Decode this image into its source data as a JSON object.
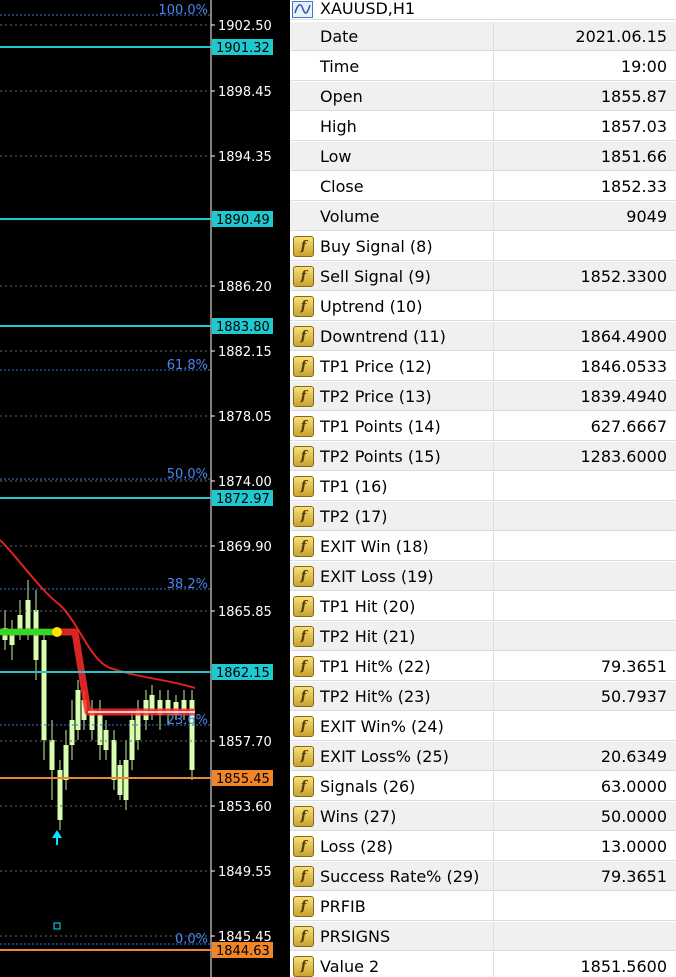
{
  "price_axis": {
    "labels": [
      "1902.50",
      "1898.45",
      "1894.35",
      "1886.20",
      "1882.15",
      "1878.05",
      "1874.00",
      "1869.90",
      "1865.85",
      "1857.70",
      "1853.60",
      "1849.55",
      "1845.45"
    ],
    "levels": [
      "1901.32",
      "1890.49",
      "1883.80",
      "1872.97",
      "1862.15"
    ],
    "orange_levels": [
      "1855.45",
      "1844.63"
    ]
  },
  "fib_labels": [
    "100.0%",
    "61.8%",
    "50.0%",
    "38.2%",
    "23.6%",
    "0.0%"
  ],
  "data_window": {
    "title": "XAUUSD,H1",
    "rows": [
      {
        "label": "Date",
        "value": "2021.06.15"
      },
      {
        "label": "Time",
        "value": "19:00"
      },
      {
        "label": "Open",
        "value": "1855.87"
      },
      {
        "label": "High",
        "value": "1857.03"
      },
      {
        "label": "Low",
        "value": "1851.66"
      },
      {
        "label": "Close",
        "value": "1852.33"
      },
      {
        "label": "Volume",
        "value": "9049"
      },
      {
        "label": "Buy Signal (8)"
      },
      {
        "label": "Sell Signal (9)",
        "value": "1852.3300"
      },
      {
        "label": "Uptrend (10)"
      },
      {
        "label": "Downtrend (11)",
        "value": "1864.4900"
      },
      {
        "label": "TP1 Price (12)",
        "value": "1846.0533"
      },
      {
        "label": "TP2 Price (13)",
        "value": "1839.4940"
      },
      {
        "label": "TP1 Points (14)",
        "value": "627.6667"
      },
      {
        "label": "TP2 Points (15)",
        "value": "1283.6000"
      },
      {
        "label": "TP1 (16)"
      },
      {
        "label": "TP2 (17)"
      },
      {
        "label": "EXIT Win (18)"
      },
      {
        "label": "EXIT Loss (19)"
      },
      {
        "label": "TP1 Hit (20)"
      },
      {
        "label": "TP2 Hit (21)"
      },
      {
        "label": "TP1 Hit% (22)",
        "value": "79.3651"
      },
      {
        "label": "TP2 Hit% (23)",
        "value": "50.7937"
      },
      {
        "label": "EXIT Win% (24)"
      },
      {
        "label": "EXIT Loss% (25)",
        "value": "20.6349"
      },
      {
        "label": "Signals (26)",
        "value": "63.0000"
      },
      {
        "label": "Wins (27)",
        "value": "50.0000"
      },
      {
        "label": "Loss (28)",
        "value": "13.0000"
      },
      {
        "label": "Success Rate% (29)",
        "value": "79.3651"
      },
      {
        "label": "PRFIB"
      },
      {
        "label": "PRSIGNS"
      },
      {
        "label": "Value 2",
        "value": "1851.5600"
      }
    ]
  }
}
